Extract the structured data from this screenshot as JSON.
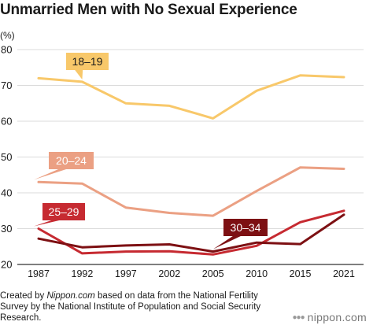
{
  "title": "Unmarried Men with No Sexual Experience",
  "unit_label": "(%)",
  "footer": {
    "prefix": "Created by ",
    "source_name": "Nippon.com",
    "suffix": " based on data from the National Fertility Survey by the National Institute of Population and Social Security Research."
  },
  "brand": {
    "dots": "●●●",
    "name": "nippon.com",
    "color": "#888888"
  },
  "chart_data": {
    "type": "line",
    "title": "Unmarried Men with No Sexual Experience",
    "xlabel": "",
    "ylabel": "(%)",
    "categories": [
      "1987",
      "1992",
      "1997",
      "2002",
      "2005",
      "2010",
      "2015",
      "2021"
    ],
    "yticks": [
      20,
      30,
      40,
      50,
      60,
      70,
      80
    ],
    "ylim": [
      20,
      80
    ],
    "grid": true,
    "series": [
      {
        "name": "18–19",
        "color": "#f8c86a",
        "values": [
          72.0,
          71.0,
          65.0,
          64.3,
          60.8,
          68.5,
          72.8,
          72.3
        ]
      },
      {
        "name": "20–24",
        "color": "#eba083",
        "values": [
          43.0,
          42.6,
          35.9,
          34.4,
          33.6,
          40.5,
          47.1,
          46.7
        ]
      },
      {
        "name": "25–29",
        "color": "#c62a31",
        "values": [
          30.0,
          23.1,
          23.6,
          23.7,
          22.8,
          25.2,
          31.8,
          35.0
        ]
      },
      {
        "name": "30–34",
        "color": "#7d1013",
        "values": [
          27.2,
          24.8,
          25.3,
          25.6,
          23.6,
          26.1,
          25.7,
          33.9
        ]
      }
    ]
  }
}
